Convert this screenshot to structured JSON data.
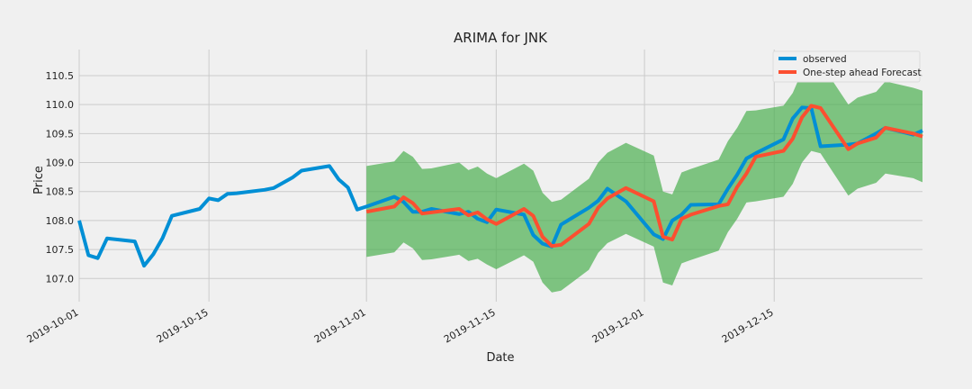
{
  "chart_data": {
    "type": "line",
    "title": "ARIMA for JNK",
    "xlabel": "Date",
    "ylabel": "Price",
    "x_range": [
      "2019-10-01",
      "2019-12-31"
    ],
    "ylim": [
      106.6,
      110.95
    ],
    "y_ticks": [
      107.0,
      107.5,
      108.0,
      108.5,
      109.0,
      109.5,
      110.0,
      110.5
    ],
    "x_ticks": [
      "2019-10-01",
      "2019-10-15",
      "2019-11-01",
      "2019-11-15",
      "2019-12-01",
      "2019-12-15"
    ],
    "grid": true,
    "legend": "top-right",
    "colors": {
      "observed": "#008fd5",
      "forecast": "#fc4f30",
      "confidence": "#4caf50",
      "background": "#f0f0f0",
      "grid": "#cbcbcb"
    },
    "series": [
      {
        "name": "observed",
        "points": [
          [
            "2019-10-01",
            108.0
          ],
          [
            "2019-10-02",
            107.4
          ],
          [
            "2019-10-03",
            107.35
          ],
          [
            "2019-10-04",
            107.69
          ],
          [
            "2019-10-07",
            107.64
          ],
          [
            "2019-10-08",
            107.22
          ],
          [
            "2019-10-09",
            107.42
          ],
          [
            "2019-10-10",
            107.7
          ],
          [
            "2019-10-11",
            108.08
          ],
          [
            "2019-10-14",
            108.2
          ],
          [
            "2019-10-15",
            108.38
          ],
          [
            "2019-10-16",
            108.35
          ],
          [
            "2019-10-17",
            108.46
          ],
          [
            "2019-10-18",
            108.47
          ],
          [
            "2019-10-21",
            108.53
          ],
          [
            "2019-10-22",
            108.56
          ],
          [
            "2019-10-23",
            108.65
          ],
          [
            "2019-10-24",
            108.74
          ],
          [
            "2019-10-25",
            108.86
          ],
          [
            "2019-10-28",
            108.94
          ],
          [
            "2019-10-29",
            108.71
          ],
          [
            "2019-10-30",
            108.57
          ],
          [
            "2019-10-31",
            108.19
          ],
          [
            "2019-11-01",
            108.24
          ],
          [
            "2019-11-04",
            108.41
          ],
          [
            "2019-11-05",
            108.32
          ],
          [
            "2019-11-06",
            108.15
          ],
          [
            "2019-11-07",
            108.15
          ],
          [
            "2019-11-08",
            108.2
          ],
          [
            "2019-11-11",
            108.11
          ],
          [
            "2019-11-12",
            108.15
          ],
          [
            "2019-11-13",
            108.03
          ],
          [
            "2019-11-14",
            107.97
          ],
          [
            "2019-11-15",
            108.19
          ],
          [
            "2019-11-18",
            108.1
          ],
          [
            "2019-11-19",
            107.75
          ],
          [
            "2019-11-20",
            107.6
          ],
          [
            "2019-11-21",
            107.55
          ],
          [
            "2019-11-22",
            107.93
          ],
          [
            "2019-11-25",
            108.22
          ],
          [
            "2019-11-26",
            108.34
          ],
          [
            "2019-11-27",
            108.55
          ],
          [
            "2019-11-29",
            108.33
          ],
          [
            "2019-12-02",
            107.76
          ],
          [
            "2019-12-03",
            107.68
          ],
          [
            "2019-12-04",
            108.0
          ],
          [
            "2019-12-05",
            108.1
          ],
          [
            "2019-12-06",
            108.27
          ],
          [
            "2019-12-09",
            108.28
          ],
          [
            "2019-12-10",
            108.55
          ],
          [
            "2019-12-11",
            108.79
          ],
          [
            "2019-12-12",
            109.07
          ],
          [
            "2019-12-13",
            109.16
          ],
          [
            "2019-12-16",
            109.4
          ],
          [
            "2019-12-17",
            109.76
          ],
          [
            "2019-12-18",
            109.95
          ],
          [
            "2019-12-19",
            109.94
          ],
          [
            "2019-12-20",
            109.28
          ],
          [
            "2019-12-23",
            109.31
          ],
          [
            "2019-12-24",
            109.33
          ],
          [
            "2019-12-26",
            109.5
          ],
          [
            "2019-12-27",
            109.6
          ],
          [
            "2019-12-30",
            109.48
          ],
          [
            "2019-12-31",
            109.55
          ]
        ]
      },
      {
        "name": "One-step ahead Forecast",
        "points": [
          [
            "2019-11-01",
            108.15
          ],
          [
            "2019-11-04",
            108.24
          ],
          [
            "2019-11-05",
            108.4
          ],
          [
            "2019-11-06",
            108.3
          ],
          [
            "2019-11-07",
            108.12
          ],
          [
            "2019-11-08",
            108.14
          ],
          [
            "2019-11-11",
            108.2
          ],
          [
            "2019-11-12",
            108.09
          ],
          [
            "2019-11-13",
            108.14
          ],
          [
            "2019-11-14",
            108.02
          ],
          [
            "2019-11-15",
            107.94
          ],
          [
            "2019-11-18",
            108.2
          ],
          [
            "2019-11-19",
            108.08
          ],
          [
            "2019-11-20",
            107.72
          ],
          [
            "2019-11-21",
            107.56
          ],
          [
            "2019-11-22",
            107.58
          ],
          [
            "2019-11-25",
            107.94
          ],
          [
            "2019-11-26",
            108.22
          ],
          [
            "2019-11-27",
            108.38
          ],
          [
            "2019-11-29",
            108.56
          ],
          [
            "2019-12-02",
            108.33
          ],
          [
            "2019-12-03",
            107.72
          ],
          [
            "2019-12-04",
            107.67
          ],
          [
            "2019-12-05",
            108.03
          ],
          [
            "2019-12-06",
            108.1
          ],
          [
            "2019-12-09",
            108.25
          ],
          [
            "2019-12-10",
            108.28
          ],
          [
            "2019-12-11",
            108.58
          ],
          [
            "2019-12-12",
            108.81
          ],
          [
            "2019-12-13",
            109.1
          ],
          [
            "2019-12-16",
            109.2
          ],
          [
            "2019-12-17",
            109.41
          ],
          [
            "2019-12-18",
            109.78
          ],
          [
            "2019-12-19",
            109.98
          ],
          [
            "2019-12-20",
            109.94
          ],
          [
            "2019-12-23",
            109.23
          ],
          [
            "2019-12-24",
            109.33
          ],
          [
            "2019-12-26",
            109.43
          ],
          [
            "2019-12-27",
            109.6
          ],
          [
            "2019-12-30",
            109.5
          ],
          [
            "2019-12-31",
            109.45
          ]
        ]
      }
    ],
    "confidence_band": {
      "upper": [
        [
          "2019-11-01",
          108.94
        ],
        [
          "2019-11-04",
          109.02
        ],
        [
          "2019-11-05",
          109.2
        ],
        [
          "2019-11-06",
          109.1
        ],
        [
          "2019-11-07",
          108.89
        ],
        [
          "2019-11-08",
          108.9
        ],
        [
          "2019-11-11",
          109.0
        ],
        [
          "2019-11-12",
          108.87
        ],
        [
          "2019-11-13",
          108.93
        ],
        [
          "2019-11-14",
          108.81
        ],
        [
          "2019-11-15",
          108.73
        ],
        [
          "2019-11-18",
          108.98
        ],
        [
          "2019-11-19",
          108.86
        ],
        [
          "2019-11-20",
          108.48
        ],
        [
          "2019-11-21",
          108.32
        ],
        [
          "2019-11-22",
          108.36
        ],
        [
          "2019-11-25",
          108.72
        ],
        [
          "2019-11-26",
          109.0
        ],
        [
          "2019-11-27",
          109.17
        ],
        [
          "2019-11-29",
          109.34
        ],
        [
          "2019-12-02",
          109.12
        ],
        [
          "2019-12-03",
          108.5
        ],
        [
          "2019-12-04",
          108.45
        ],
        [
          "2019-12-05",
          108.83
        ],
        [
          "2019-12-06",
          108.89
        ],
        [
          "2019-12-09",
          109.05
        ],
        [
          "2019-12-10",
          109.37
        ],
        [
          "2019-12-11",
          109.6
        ],
        [
          "2019-12-12",
          109.89
        ],
        [
          "2019-12-13",
          109.9
        ],
        [
          "2019-12-16",
          109.98
        ],
        [
          "2019-12-17",
          110.2
        ],
        [
          "2019-12-18",
          110.57
        ],
        [
          "2019-12-19",
          110.77
        ],
        [
          "2019-12-20",
          110.72
        ],
        [
          "2019-12-23",
          110.0
        ],
        [
          "2019-12-24",
          110.12
        ],
        [
          "2019-12-26",
          110.22
        ],
        [
          "2019-12-27",
          110.4
        ],
        [
          "2019-12-30",
          110.29
        ],
        [
          "2019-12-31",
          110.24
        ]
      ],
      "lower": [
        [
          "2019-11-01",
          107.37
        ],
        [
          "2019-11-04",
          107.45
        ],
        [
          "2019-11-05",
          107.62
        ],
        [
          "2019-11-06",
          107.52
        ],
        [
          "2019-11-07",
          107.32
        ],
        [
          "2019-11-08",
          107.33
        ],
        [
          "2019-11-11",
          107.41
        ],
        [
          "2019-11-12",
          107.3
        ],
        [
          "2019-11-13",
          107.34
        ],
        [
          "2019-11-14",
          107.24
        ],
        [
          "2019-11-15",
          107.16
        ],
        [
          "2019-11-18",
          107.4
        ],
        [
          "2019-11-19",
          107.29
        ],
        [
          "2019-11-20",
          106.93
        ],
        [
          "2019-11-21",
          106.76
        ],
        [
          "2019-11-22",
          106.79
        ],
        [
          "2019-11-25",
          107.15
        ],
        [
          "2019-11-26",
          107.44
        ],
        [
          "2019-11-27",
          107.61
        ],
        [
          "2019-11-29",
          107.77
        ],
        [
          "2019-12-02",
          107.55
        ],
        [
          "2019-12-03",
          106.93
        ],
        [
          "2019-12-04",
          106.88
        ],
        [
          "2019-12-05",
          107.26
        ],
        [
          "2019-12-06",
          107.32
        ],
        [
          "2019-12-09",
          107.48
        ],
        [
          "2019-12-10",
          107.8
        ],
        [
          "2019-12-11",
          108.03
        ],
        [
          "2019-12-12",
          108.31
        ],
        [
          "2019-12-13",
          108.33
        ],
        [
          "2019-12-16",
          108.41
        ],
        [
          "2019-12-17",
          108.63
        ],
        [
          "2019-12-18",
          109.0
        ],
        [
          "2019-12-19",
          109.2
        ],
        [
          "2019-12-20",
          109.16
        ],
        [
          "2019-12-23",
          108.43
        ],
        [
          "2019-12-24",
          108.55
        ],
        [
          "2019-12-26",
          108.65
        ],
        [
          "2019-12-27",
          108.81
        ],
        [
          "2019-12-30",
          108.73
        ],
        [
          "2019-12-31",
          108.66
        ]
      ]
    }
  }
}
